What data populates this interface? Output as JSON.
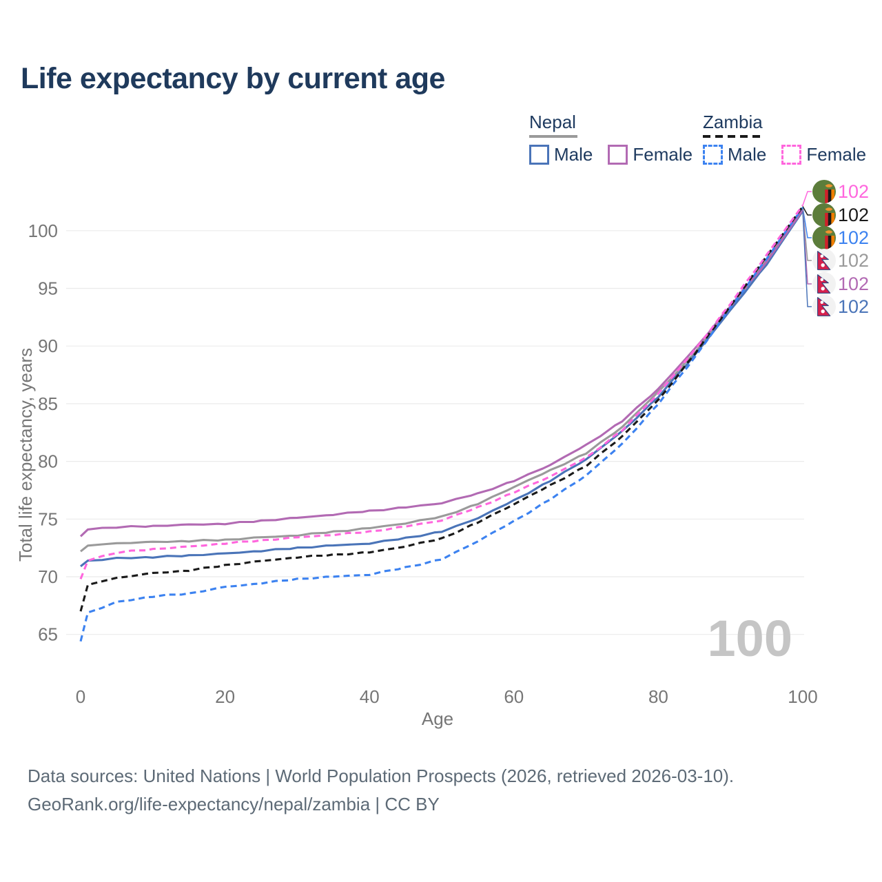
{
  "title": "Life expectancy by current age",
  "legend": {
    "groups": [
      {
        "name": "Nepal",
        "line_style": "solid",
        "underline_color": "#9a9a9a",
        "items": [
          {
            "label": "Male",
            "color": "#4a74b8",
            "dashed": false
          },
          {
            "label": "Female",
            "color": "#b26ab3",
            "dashed": false
          }
        ]
      },
      {
        "name": "Zambia",
        "line_style": "dashed",
        "underline_color": "#1a1a1a",
        "items": [
          {
            "label": "Male",
            "color": "#3c82f0",
            "dashed": true
          },
          {
            "label": "Female",
            "color": "#ff66dd",
            "dashed": true
          }
        ]
      }
    ]
  },
  "watermark_age": "100",
  "chart_data": {
    "type": "line",
    "title": "Life expectancy by current age",
    "xlabel": "Age",
    "ylabel": "Total life expectancy, years",
    "x_ticks": [
      0,
      20,
      40,
      60,
      80,
      100
    ],
    "y_ticks": [
      65,
      70,
      75,
      80,
      85,
      90,
      95,
      100
    ],
    "xlim": [
      0,
      100
    ],
    "ylim": [
      63.5,
      103
    ],
    "grid": "horizontal-only",
    "legend_position": "top-right",
    "x": [
      0,
      1,
      5,
      10,
      15,
      20,
      25,
      30,
      35,
      40,
      45,
      50,
      55,
      60,
      65,
      70,
      75,
      80,
      85,
      90,
      95,
      100
    ],
    "series": [
      {
        "name": "Nepal Male",
        "country": "Nepal",
        "sex": "Male",
        "flag": "nepal",
        "color": "#4a74b8",
        "dash": false,
        "values": [
          70.9,
          71.4,
          71.6,
          71.7,
          71.85,
          72.0,
          72.25,
          72.5,
          72.7,
          72.9,
          73.35,
          73.9,
          75.1,
          76.6,
          78.3,
          80.2,
          82.6,
          85.6,
          89.2,
          93.1,
          97.1,
          101.7
        ],
        "end_label": "102"
      },
      {
        "name": "Nepal Female",
        "country": "Nepal",
        "sex": "Female",
        "flag": "nepal",
        "color": "#b26ab3",
        "dash": false,
        "values": [
          73.5,
          74.1,
          74.3,
          74.4,
          74.5,
          74.6,
          74.85,
          75.1,
          75.4,
          75.7,
          76.0,
          76.4,
          77.2,
          78.3,
          79.7,
          81.4,
          83.5,
          86.3,
          89.7,
          93.5,
          97.3,
          101.8
        ],
        "end_label": "102"
      },
      {
        "name": "Nepal",
        "country": "Nepal",
        "sex": "Both",
        "flag": "nepal",
        "color": "#9a9a9a",
        "dash": false,
        "values": [
          72.2,
          72.7,
          72.9,
          73.0,
          73.1,
          73.2,
          73.4,
          73.6,
          73.9,
          74.2,
          74.65,
          75.2,
          76.3,
          77.8,
          79.2,
          80.7,
          83.0,
          86.0,
          89.4,
          93.4,
          97.4,
          101.9
        ],
        "end_label": "102"
      },
      {
        "name": "Zambia Male",
        "country": "Zambia",
        "sex": "Male",
        "flag": "zambia",
        "color": "#3c82f0",
        "dash": true,
        "values": [
          64.4,
          66.9,
          67.8,
          68.3,
          68.55,
          69.1,
          69.45,
          69.8,
          70.0,
          70.2,
          70.8,
          71.5,
          73.1,
          74.8,
          76.7,
          78.8,
          81.5,
          85.0,
          89.0,
          93.3,
          97.6,
          102.0
        ],
        "end_label": "102"
      },
      {
        "name": "Zambia Female",
        "country": "Zambia",
        "sex": "Female",
        "flag": "zambia",
        "color": "#ff66dd",
        "dash": true,
        "values": [
          69.8,
          71.4,
          72.1,
          72.4,
          72.6,
          72.9,
          73.15,
          73.4,
          73.65,
          73.9,
          74.35,
          74.9,
          76.0,
          77.3,
          78.7,
          80.3,
          82.7,
          85.9,
          89.6,
          93.7,
          97.9,
          102.2
        ],
        "end_label": "102"
      },
      {
        "name": "Zambia",
        "country": "Zambia",
        "sex": "Both",
        "flag": "zambia",
        "color": "#1a1a1a",
        "dash": true,
        "values": [
          67.0,
          69.3,
          69.9,
          70.3,
          70.55,
          71.0,
          71.35,
          71.7,
          71.9,
          72.1,
          72.65,
          73.3,
          74.7,
          76.3,
          77.9,
          79.6,
          82.2,
          85.3,
          89.3,
          93.5,
          97.75,
          102.1
        ],
        "end_label": "102"
      }
    ],
    "end_label_order": [
      "Zambia Female",
      "Zambia",
      "Zambia Male",
      "Nepal",
      "Nepal Female",
      "Nepal Male"
    ]
  },
  "footer": {
    "line1": "Data sources: United Nations | World Population Prospects (2026, retrieved 2026-03-10).",
    "line2": "GeoRank.org/life-expectancy/nepal/zambia | CC BY"
  }
}
